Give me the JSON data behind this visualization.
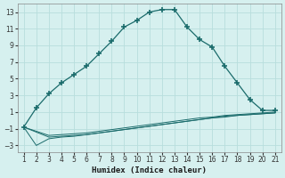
{
  "xlabel": "Humidex (Indice chaleur)",
  "bg_color": "#d6f0ef",
  "grid_color": "#b8dedd",
  "line_color": "#1a6b6b",
  "xlim": [
    0.5,
    21.5
  ],
  "ylim": [
    -3.8,
    14.0
  ],
  "xticks": [
    1,
    2,
    3,
    4,
    5,
    6,
    7,
    8,
    9,
    10,
    11,
    12,
    13,
    14,
    15,
    16,
    17,
    18,
    19,
    20,
    21
  ],
  "yticks": [
    -3,
    -1,
    1,
    3,
    5,
    7,
    9,
    11,
    13
  ],
  "main_x": [
    1,
    2,
    3,
    4,
    5,
    6,
    7,
    8,
    9,
    10,
    11,
    12,
    13,
    14,
    15,
    16,
    17,
    18,
    19,
    20,
    21
  ],
  "main_y": [
    -0.8,
    1.5,
    3.2,
    4.5,
    5.5,
    6.5,
    8.0,
    9.5,
    11.2,
    12.0,
    13.0,
    13.3,
    13.3,
    11.2,
    9.7,
    8.8,
    6.5,
    4.5,
    2.5,
    1.2,
    1.2
  ],
  "flat1_x": [
    1,
    3,
    4,
    5,
    6,
    7,
    8,
    9,
    10,
    11,
    12,
    13,
    14,
    15,
    16,
    17,
    18,
    19,
    20,
    21
  ],
  "flat1_y": [
    -0.8,
    -1.8,
    -1.7,
    -1.6,
    -1.5,
    -1.3,
    -1.1,
    -0.9,
    -0.7,
    -0.5,
    -0.3,
    -0.1,
    0.1,
    0.3,
    0.4,
    0.6,
    0.7,
    0.8,
    0.9,
    1.0
  ],
  "flat2_x": [
    1,
    3,
    4,
    5,
    6,
    7,
    8,
    9,
    10,
    11,
    12,
    13,
    14,
    15,
    16,
    17,
    18,
    19,
    20,
    21
  ],
  "flat2_y": [
    -0.8,
    -2.0,
    -1.9,
    -1.8,
    -1.7,
    -1.5,
    -1.3,
    -1.1,
    -0.9,
    -0.7,
    -0.5,
    -0.3,
    -0.1,
    0.1,
    0.3,
    0.5,
    0.6,
    0.7,
    0.8,
    0.9
  ],
  "flat3_x": [
    1,
    2,
    3,
    4,
    5,
    6,
    7,
    8,
    9,
    10,
    11,
    12,
    13,
    14,
    15,
    16,
    17,
    18,
    19,
    20,
    21
  ],
  "flat3_y": [
    -0.8,
    -3.0,
    -2.2,
    -2.0,
    -1.9,
    -1.7,
    -1.5,
    -1.3,
    -1.1,
    -0.9,
    -0.7,
    -0.5,
    -0.3,
    -0.1,
    0.1,
    0.3,
    0.4,
    0.6,
    0.7,
    0.8,
    0.9
  ]
}
